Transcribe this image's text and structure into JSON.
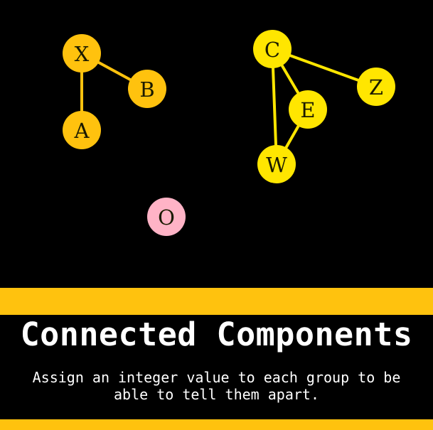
{
  "diagram": {
    "nodes": [
      {
        "id": "X",
        "label": "X",
        "color": "#FFC20E"
      },
      {
        "id": "B",
        "label": "B",
        "color": "#FFC20E"
      },
      {
        "id": "A",
        "label": "A",
        "color": "#FFC20E"
      },
      {
        "id": "C",
        "label": "C",
        "color": "#FFE600"
      },
      {
        "id": "Z",
        "label": "Z",
        "color": "#FFE600"
      },
      {
        "id": "E",
        "label": "E",
        "color": "#FFE600"
      },
      {
        "id": "W",
        "label": "W",
        "color": "#FFE600"
      },
      {
        "id": "O",
        "label": "O",
        "color": "#FFB3C6"
      }
    ],
    "edges": [
      {
        "from": "X",
        "to": "B",
        "color": "#FFC20E"
      },
      {
        "from": "X",
        "to": "A",
        "color": "#FFC20E"
      },
      {
        "from": "C",
        "to": "Z",
        "color": "#FFE600"
      },
      {
        "from": "C",
        "to": "E",
        "color": "#FFE600"
      },
      {
        "from": "C",
        "to": "W",
        "color": "#FFE600"
      },
      {
        "from": "E",
        "to": "W",
        "color": "#FFE600"
      }
    ]
  },
  "footer": {
    "title": "Connected Components",
    "subtitle": "Assign an integer value to each group to be able to tell them apart.",
    "band_color": "#FFC20E"
  }
}
